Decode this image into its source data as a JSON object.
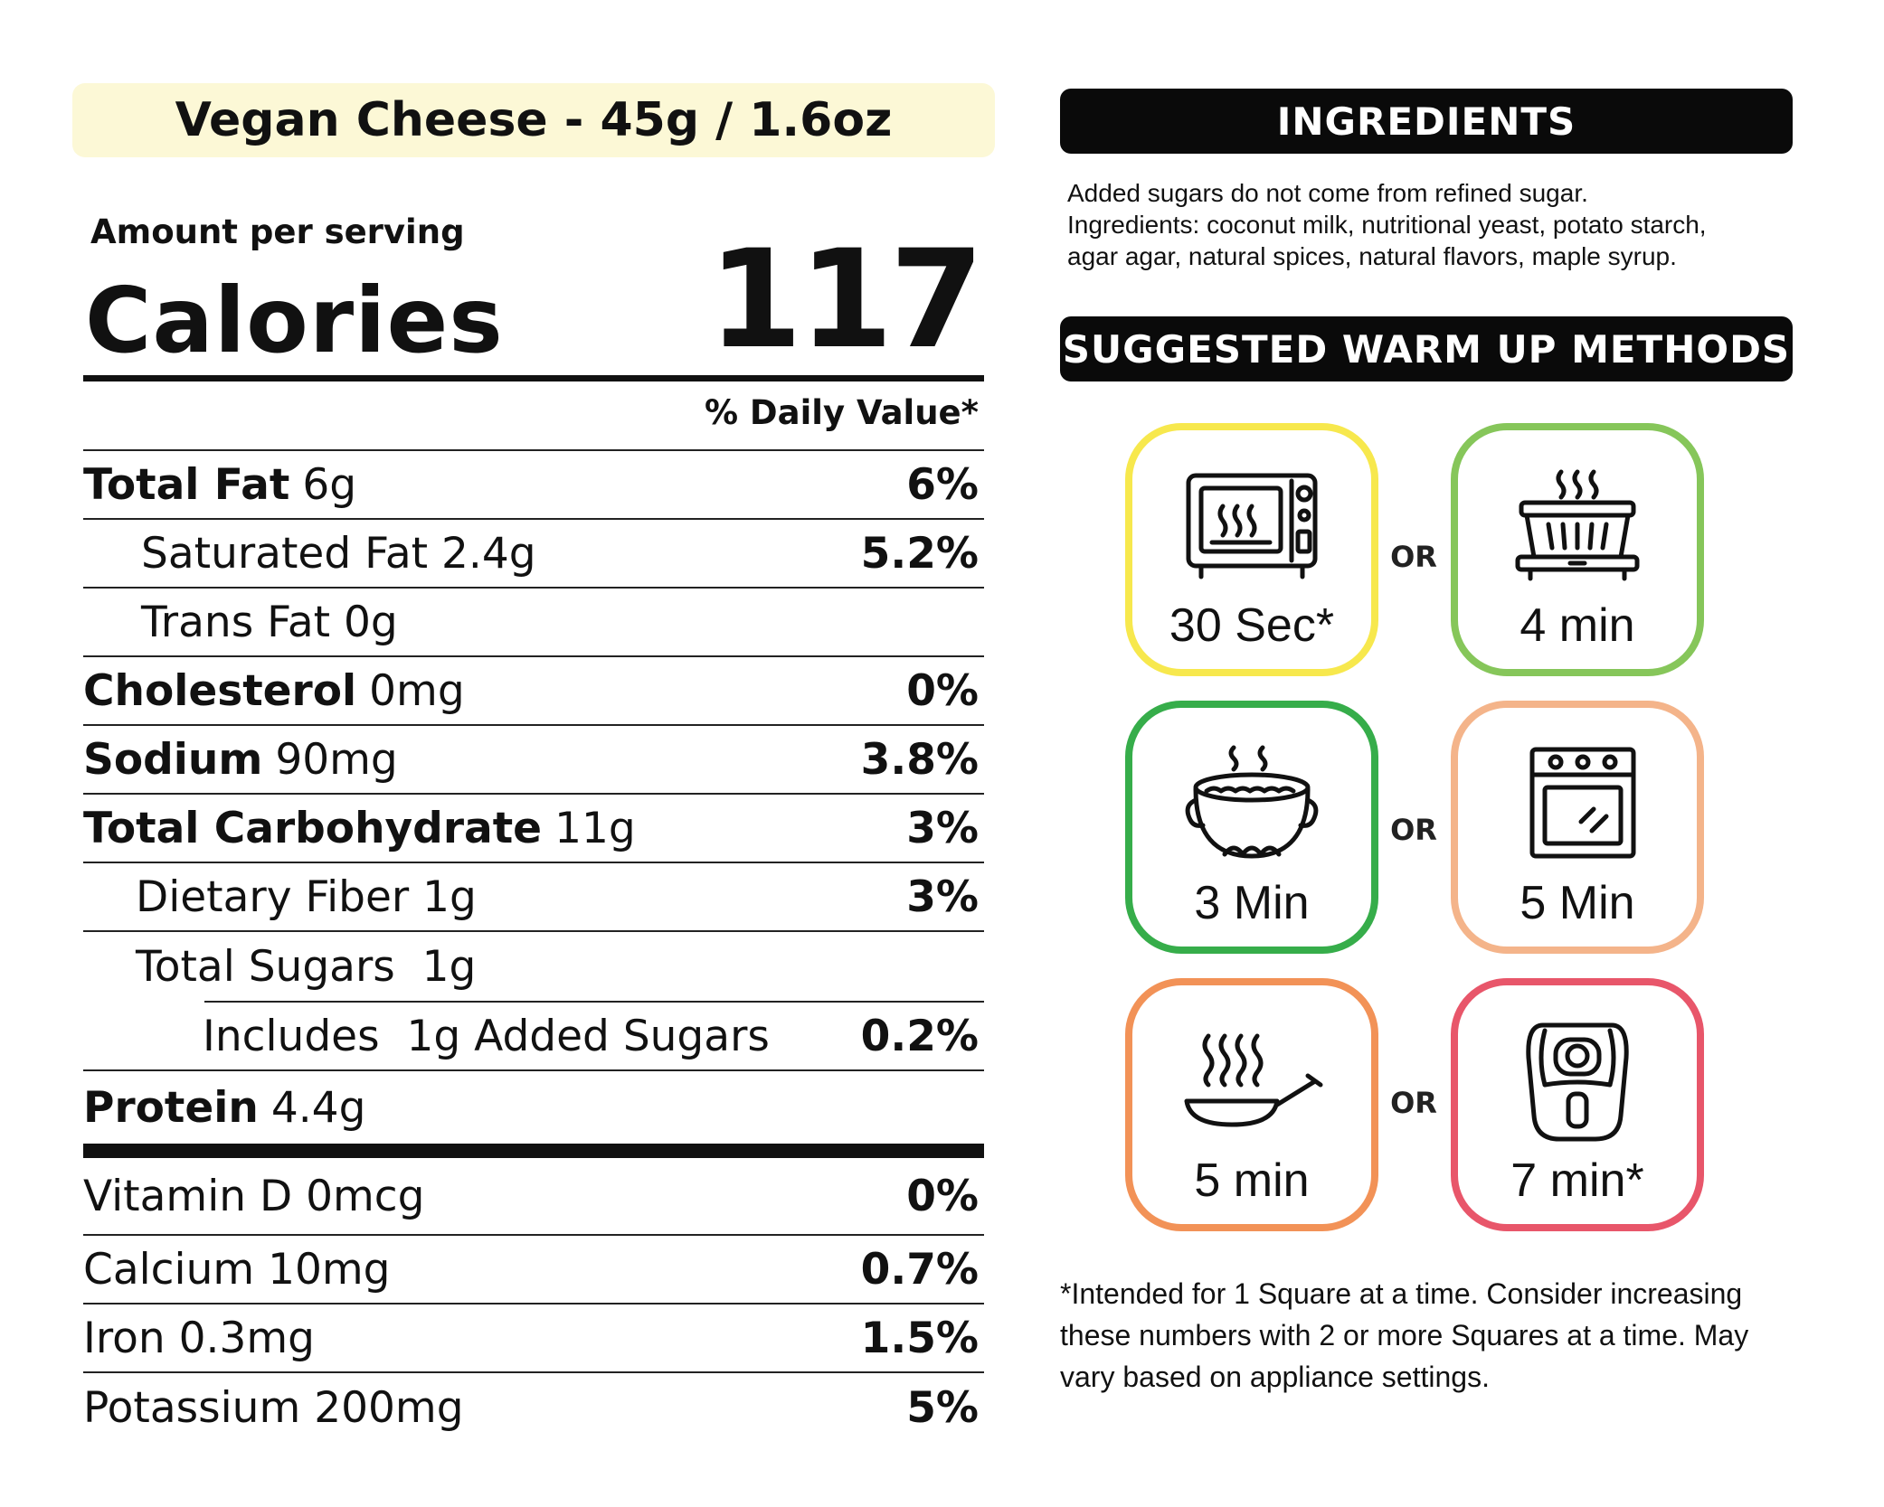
{
  "header": {
    "title": "Vegan Cheese - 45g / 1.6oz"
  },
  "facts": {
    "amount_per_serving": "Amount per serving",
    "calories_label": "Calories",
    "calories_value": "117",
    "dv_header": "% Daily Value*",
    "rows": [
      {
        "label": "Total Fat",
        "amount": "6g",
        "dv": "6%"
      },
      {
        "label": "Saturated Fat 2.4g",
        "amount": "",
        "dv": "5.2%"
      },
      {
        "label": "Trans Fat 0g",
        "amount": "",
        "dv": ""
      },
      {
        "label": "Cholesterol",
        "amount": "0mg",
        "dv": "0%"
      },
      {
        "label": "Sodium",
        "amount": "90mg",
        "dv": "3.8%"
      },
      {
        "label": "Total Carbohydrate",
        "amount": "11g",
        "dv": "3%"
      },
      {
        "label": "Dietary Fiber 1g",
        "amount": "",
        "dv": "3%"
      },
      {
        "label": "Total Sugars  1g",
        "amount": "",
        "dv": ""
      },
      {
        "label": "Includes  1g Added Sugars",
        "amount": "",
        "dv": "0.2%"
      },
      {
        "label": "Protein",
        "amount": "4.4g",
        "dv": ""
      },
      {
        "label": "Vitamin D 0mcg",
        "amount": "",
        "dv": "0%"
      },
      {
        "label": "Calcium 10mg",
        "amount": "",
        "dv": "0.7%"
      },
      {
        "label": "Iron 0.3mg",
        "amount": "",
        "dv": "1.5%"
      },
      {
        "label": "Potassium 200mg",
        "amount": "",
        "dv": "5%"
      }
    ]
  },
  "ingredients": {
    "heading": "INGREDIENTS",
    "lines": [
      "Added sugars do not come from refined sugar.",
      "Ingredients: coconut milk, nutritional yeast, potato starch,",
      "agar agar, natural spices, natural flavors, maple syrup."
    ]
  },
  "warmup": {
    "heading": "SUGGESTED WARM UP METHODS",
    "or_label": "OR",
    "methods": [
      {
        "icon": "microwave-icon",
        "time": "30 Sec*",
        "color": "#f7e84d"
      },
      {
        "icon": "steamer-icon",
        "time": "4 min",
        "color": "#86c65a"
      },
      {
        "icon": "pot-icon",
        "time": "3 Min",
        "color": "#36ad4a"
      },
      {
        "icon": "oven-icon",
        "time": "5 Min",
        "color": "#f4b48a"
      },
      {
        "icon": "frying-pan-icon",
        "time": "5 min",
        "color": "#f29257"
      },
      {
        "icon": "air-fryer-icon",
        "time": "7 min*",
        "color": "#e8566a"
      }
    ]
  },
  "footnote": "*Intended for 1 Square at a time. Consider increasing these numbers with 2 or more Squares at a time. May vary based on appliance settings."
}
